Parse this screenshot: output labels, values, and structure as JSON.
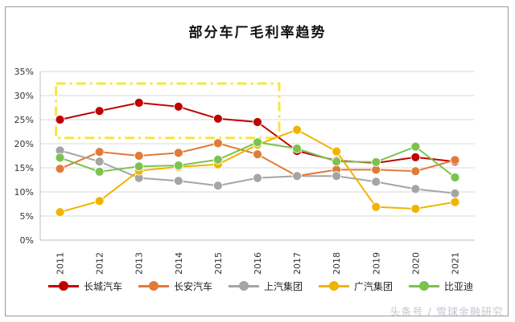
{
  "chart_data": {
    "type": "line",
    "title": "部分车厂毛利率趋势",
    "categories": [
      "2011",
      "2012",
      "2013",
      "2014",
      "2015",
      "2016",
      "2017",
      "2018",
      "2019",
      "2020",
      "2021"
    ],
    "ylim": [
      0,
      35
    ],
    "yticks": [
      "0%",
      "5%",
      "10%",
      "15%",
      "20%",
      "25%",
      "30%",
      "35%"
    ],
    "series": [
      {
        "name": "长城汽车",
        "color": "#c00000",
        "values": [
          25.0,
          26.8,
          28.5,
          27.7,
          25.2,
          24.5,
          18.5,
          16.5,
          16.0,
          17.2,
          16.3
        ]
      },
      {
        "name": "长安汽车",
        "color": "#e07b39",
        "values": [
          14.8,
          18.3,
          17.5,
          18.1,
          20.1,
          17.8,
          13.3,
          14.6,
          14.6,
          14.3,
          16.6
        ]
      },
      {
        "name": "上汽集团",
        "color": "#a5a5a5",
        "values": [
          18.6,
          16.3,
          12.9,
          12.3,
          11.3,
          12.9,
          13.3,
          13.3,
          12.1,
          10.6,
          9.7
        ]
      },
      {
        "name": "广汽集团",
        "color": "#f0b400",
        "values": [
          5.8,
          8.1,
          14.4,
          15.2,
          15.7,
          19.8,
          22.9,
          18.4,
          6.9,
          6.5,
          7.9
        ]
      },
      {
        "name": "比亚迪",
        "color": "#7cc24f",
        "values": [
          17.1,
          14.2,
          15.3,
          15.5,
          16.7,
          20.3,
          19.0,
          16.3,
          16.2,
          19.4,
          13.0
        ]
      }
    ],
    "annotation": "highlight box 2011-2016 around 长城汽车 line (dash-dot, yellow)"
  },
  "watermark": "头条号 / 雪球金融研究"
}
